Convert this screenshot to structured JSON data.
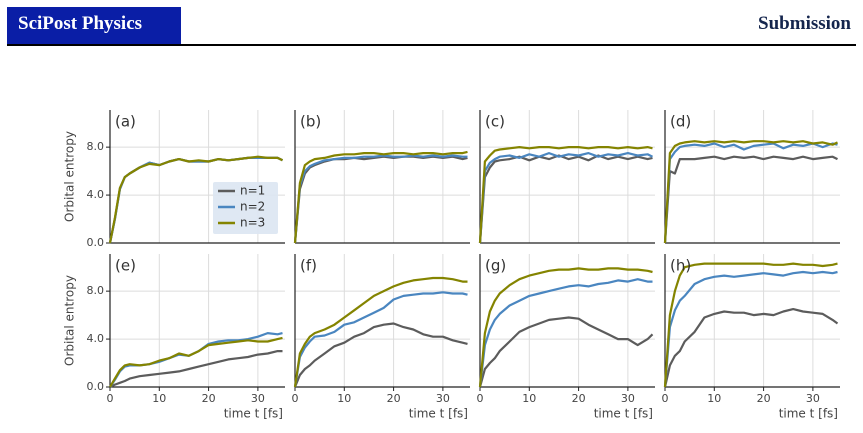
{
  "header": {
    "journal": "SciPost Physics",
    "label": "Submission"
  },
  "chart_data": [
    {
      "type": "line",
      "title": "(a)",
      "ylabel": "Orbital entropy",
      "x": [
        0,
        1,
        2,
        3,
        4,
        6,
        8,
        10,
        12,
        14,
        16,
        18,
        20,
        22,
        24,
        26,
        28,
        30,
        32,
        34,
        35
      ],
      "xlim": [
        0,
        35.5
      ],
      "ylim": [
        0,
        11.1
      ],
      "yticks": [
        {
          "value": 0,
          "label": "0.0"
        },
        {
          "value": 4,
          "label": "4.0"
        },
        {
          "value": 8,
          "label": "8.0"
        }
      ],
      "legend": "center right",
      "grid": true,
      "series": [
        {
          "name": "n=1",
          "color": "#5c5c5c",
          "values": [
            0,
            2.0,
            4.5,
            5.5,
            5.8,
            6.3,
            6.7,
            6.5,
            6.8,
            7.0,
            6.8,
            6.8,
            6.8,
            7.0,
            6.9,
            7.0,
            7.1,
            7.1,
            7.1,
            7.1,
            6.9
          ]
        },
        {
          "name": "n=2",
          "color": "#4a86c0",
          "values": [
            0,
            2.0,
            4.5,
            5.5,
            5.8,
            6.3,
            6.7,
            6.5,
            6.8,
            7.0,
            6.8,
            6.8,
            6.8,
            7.0,
            6.9,
            7.0,
            7.1,
            7.1,
            7.1,
            7.1,
            6.9
          ]
        },
        {
          "name": "n=3",
          "color": "#848400",
          "values": [
            0,
            2.1,
            4.6,
            5.5,
            5.8,
            6.3,
            6.6,
            6.5,
            6.8,
            7.0,
            6.8,
            6.9,
            6.8,
            7.0,
            6.9,
            7.0,
            7.1,
            7.2,
            7.1,
            7.1,
            6.9
          ]
        }
      ]
    },
    {
      "type": "line",
      "title": "(b)",
      "x": [
        0,
        1,
        2,
        3,
        4,
        6,
        8,
        10,
        12,
        14,
        16,
        18,
        20,
        22,
        24,
        26,
        28,
        30,
        32,
        34,
        35
      ],
      "xlim": [
        0,
        35.5
      ],
      "ylim": [
        0,
        11.1
      ],
      "grid": true,
      "series": [
        {
          "color": "#5c5c5c",
          "values": [
            0,
            4.5,
            5.8,
            6.3,
            6.5,
            6.8,
            7.0,
            7.0,
            7.1,
            7.0,
            7.1,
            7.2,
            7.1,
            7.2,
            7.2,
            7.1,
            7.2,
            7.1,
            7.2,
            7.0,
            7.1
          ]
        },
        {
          "color": "#4a86c0",
          "values": [
            0,
            4.8,
            6.0,
            6.4,
            6.6,
            6.9,
            7.0,
            7.1,
            7.1,
            7.2,
            7.2,
            7.3,
            7.2,
            7.2,
            7.3,
            7.2,
            7.3,
            7.2,
            7.3,
            7.2,
            7.2
          ]
        },
        {
          "color": "#848400",
          "values": [
            0,
            5.0,
            6.5,
            6.8,
            7.0,
            7.1,
            7.3,
            7.4,
            7.4,
            7.5,
            7.5,
            7.4,
            7.5,
            7.5,
            7.4,
            7.5,
            7.5,
            7.4,
            7.5,
            7.5,
            7.6
          ]
        }
      ]
    },
    {
      "type": "line",
      "title": "(c)",
      "x": [
        0,
        1,
        2,
        3,
        4,
        6,
        8,
        10,
        12,
        14,
        16,
        18,
        20,
        22,
        24,
        26,
        28,
        30,
        32,
        34,
        35
      ],
      "xlim": [
        0,
        35.5
      ],
      "ylim": [
        0,
        11.1
      ],
      "grid": true,
      "series": [
        {
          "color": "#5c5c5c",
          "values": [
            0,
            5.5,
            6.3,
            6.8,
            6.9,
            7.0,
            7.2,
            6.9,
            7.2,
            7.0,
            7.3,
            7.0,
            7.2,
            6.9,
            7.3,
            7.0,
            7.2,
            7.0,
            7.2,
            7.0,
            7.1
          ]
        },
        {
          "color": "#4a86c0",
          "values": [
            0,
            6.0,
            6.7,
            7.0,
            7.2,
            7.3,
            7.1,
            7.4,
            7.2,
            7.5,
            7.2,
            7.4,
            7.3,
            7.5,
            7.2,
            7.4,
            7.3,
            7.5,
            7.3,
            7.4,
            7.2
          ]
        },
        {
          "color": "#848400",
          "values": [
            0,
            6.8,
            7.3,
            7.7,
            7.8,
            7.9,
            8.0,
            7.9,
            8.0,
            8.0,
            7.9,
            8.0,
            8.0,
            7.9,
            8.0,
            8.0,
            7.9,
            8.0,
            7.9,
            8.0,
            7.9
          ]
        }
      ]
    },
    {
      "type": "line",
      "title": "(d)",
      "x": [
        0,
        1,
        2,
        3,
        4,
        6,
        8,
        10,
        12,
        14,
        16,
        18,
        20,
        22,
        24,
        26,
        28,
        30,
        32,
        34,
        35
      ],
      "xlim": [
        0,
        35.5
      ],
      "ylim": [
        0,
        11.1
      ],
      "grid": true,
      "series": [
        {
          "color": "#5c5c5c",
          "values": [
            0,
            6.0,
            5.8,
            7.0,
            7.0,
            7.0,
            7.1,
            7.2,
            7.0,
            7.2,
            7.1,
            7.2,
            7.0,
            7.2,
            7.1,
            7.0,
            7.2,
            7.0,
            7.1,
            7.2,
            7.0
          ]
        },
        {
          "color": "#4a86c0",
          "values": [
            0,
            7.0,
            7.6,
            8.0,
            8.1,
            8.2,
            8.1,
            8.3,
            8.0,
            8.2,
            7.8,
            8.1,
            8.2,
            8.3,
            7.9,
            8.2,
            8.1,
            8.3,
            8.0,
            8.3,
            8.2
          ]
        },
        {
          "color": "#848400",
          "values": [
            0,
            7.5,
            8.1,
            8.3,
            8.4,
            8.5,
            8.4,
            8.5,
            8.4,
            8.5,
            8.4,
            8.5,
            8.5,
            8.4,
            8.5,
            8.4,
            8.5,
            8.3,
            8.4,
            8.2,
            8.4
          ]
        }
      ]
    },
    {
      "type": "line",
      "title": "(e)",
      "ylabel": "Orbital entropy",
      "xlabel": "time t [fs]",
      "x": [
        0,
        1,
        2,
        3,
        4,
        6,
        8,
        10,
        12,
        14,
        16,
        18,
        20,
        22,
        24,
        26,
        28,
        30,
        32,
        34,
        35
      ],
      "xlim": [
        0,
        35.5
      ],
      "ylim": [
        0,
        11.1
      ],
      "xticks": [
        0,
        10,
        20,
        30
      ],
      "yticks": [
        {
          "value": 0,
          "label": "0.0"
        },
        {
          "value": 4,
          "label": "4.0"
        },
        {
          "value": 8,
          "label": "8.0"
        }
      ],
      "grid": true,
      "series": [
        {
          "color": "#5c5c5c",
          "values": [
            0,
            0.2,
            0.35,
            0.5,
            0.7,
            0.9,
            1.0,
            1.1,
            1.2,
            1.3,
            1.5,
            1.7,
            1.9,
            2.1,
            2.3,
            2.4,
            2.5,
            2.7,
            2.8,
            3.0,
            3.0
          ]
        },
        {
          "color": "#4a86c0",
          "values": [
            0,
            0.6,
            1.3,
            1.7,
            1.8,
            1.8,
            1.9,
            2.1,
            2.4,
            2.7,
            2.6,
            3.0,
            3.6,
            3.8,
            3.9,
            3.9,
            4.0,
            4.2,
            4.5,
            4.4,
            4.5
          ]
        },
        {
          "color": "#848400",
          "values": [
            0,
            0.7,
            1.4,
            1.8,
            1.9,
            1.8,
            1.9,
            2.2,
            2.4,
            2.8,
            2.6,
            3.0,
            3.5,
            3.6,
            3.7,
            3.8,
            3.9,
            3.8,
            3.8,
            4.0,
            4.1
          ]
        }
      ]
    },
    {
      "type": "line",
      "title": "(f)",
      "xlabel": "time t [fs]",
      "x": [
        0,
        1,
        2,
        3,
        4,
        6,
        8,
        10,
        12,
        14,
        16,
        18,
        20,
        22,
        24,
        26,
        28,
        30,
        32,
        34,
        35
      ],
      "xlim": [
        0,
        35.5
      ],
      "ylim": [
        0,
        11.1
      ],
      "xticks": [
        0,
        10,
        20,
        30
      ],
      "grid": true,
      "series": [
        {
          "color": "#5c5c5c",
          "values": [
            0,
            1.0,
            1.5,
            1.8,
            2.2,
            2.8,
            3.4,
            3.7,
            4.2,
            4.5,
            5.0,
            5.2,
            5.3,
            5.0,
            4.8,
            4.4,
            4.2,
            4.2,
            3.9,
            3.7,
            3.6
          ]
        },
        {
          "color": "#4a86c0",
          "values": [
            0,
            2.5,
            3.3,
            3.8,
            4.2,
            4.3,
            4.6,
            5.2,
            5.4,
            5.8,
            6.2,
            6.6,
            7.3,
            7.6,
            7.7,
            7.8,
            7.8,
            7.9,
            7.8,
            7.8,
            7.7
          ]
        },
        {
          "color": "#848400",
          "values": [
            0,
            2.8,
            3.6,
            4.2,
            4.5,
            4.8,
            5.2,
            5.8,
            6.4,
            7.0,
            7.6,
            8.0,
            8.4,
            8.7,
            8.9,
            9.0,
            9.1,
            9.1,
            9.0,
            8.8,
            8.8
          ]
        }
      ]
    },
    {
      "type": "line",
      "title": "(g)",
      "xlabel": "time t [fs]",
      "x": [
        0,
        1,
        2,
        3,
        4,
        6,
        8,
        10,
        12,
        14,
        16,
        18,
        20,
        22,
        24,
        26,
        28,
        30,
        32,
        34,
        35
      ],
      "xlim": [
        0,
        35.5
      ],
      "ylim": [
        0,
        11.1
      ],
      "xticks": [
        0,
        10,
        20,
        30
      ],
      "grid": true,
      "series": [
        {
          "color": "#5c5c5c",
          "values": [
            0,
            1.5,
            2.0,
            2.4,
            3.0,
            3.8,
            4.6,
            5.0,
            5.3,
            5.6,
            5.7,
            5.8,
            5.7,
            5.2,
            4.8,
            4.4,
            4.0,
            4.0,
            3.5,
            4.0,
            4.4
          ]
        },
        {
          "color": "#4a86c0",
          "values": [
            0,
            3.5,
            4.8,
            5.6,
            6.1,
            6.8,
            7.2,
            7.6,
            7.8,
            8.0,
            8.2,
            8.4,
            8.5,
            8.4,
            8.6,
            8.7,
            8.9,
            8.8,
            9.0,
            8.8,
            8.8
          ]
        },
        {
          "color": "#848400",
          "values": [
            0,
            4.5,
            6.3,
            7.2,
            7.8,
            8.5,
            9.0,
            9.3,
            9.5,
            9.7,
            9.8,
            9.8,
            9.9,
            9.8,
            9.8,
            9.9,
            9.9,
            9.8,
            9.8,
            9.7,
            9.6
          ]
        }
      ]
    },
    {
      "type": "line",
      "title": "(h)",
      "xlabel": "time t [fs]",
      "x": [
        0,
        1,
        2,
        3,
        4,
        6,
        8,
        10,
        12,
        14,
        16,
        18,
        20,
        22,
        24,
        26,
        28,
        30,
        32,
        34,
        35
      ],
      "xlim": [
        0,
        35.5
      ],
      "ylim": [
        0,
        11.1
      ],
      "xticks": [
        0,
        10,
        20,
        30
      ],
      "grid": true,
      "series": [
        {
          "color": "#5c5c5c",
          "values": [
            0,
            1.8,
            2.6,
            3.0,
            3.8,
            4.6,
            5.8,
            6.1,
            6.3,
            6.2,
            6.2,
            6.0,
            6.1,
            6.0,
            6.3,
            6.5,
            6.3,
            6.2,
            6.1,
            5.6,
            5.3
          ]
        },
        {
          "color": "#4a86c0",
          "values": [
            0,
            5.0,
            6.4,
            7.2,
            7.6,
            8.6,
            9.0,
            9.2,
            9.3,
            9.2,
            9.3,
            9.4,
            9.5,
            9.4,
            9.3,
            9.5,
            9.6,
            9.5,
            9.6,
            9.5,
            9.6
          ]
        },
        {
          "color": "#848400",
          "values": [
            0,
            6.0,
            8.0,
            9.3,
            10.0,
            10.2,
            10.3,
            10.3,
            10.3,
            10.3,
            10.3,
            10.3,
            10.3,
            10.2,
            10.2,
            10.3,
            10.2,
            10.2,
            10.1,
            10.2,
            10.3
          ]
        }
      ]
    }
  ]
}
